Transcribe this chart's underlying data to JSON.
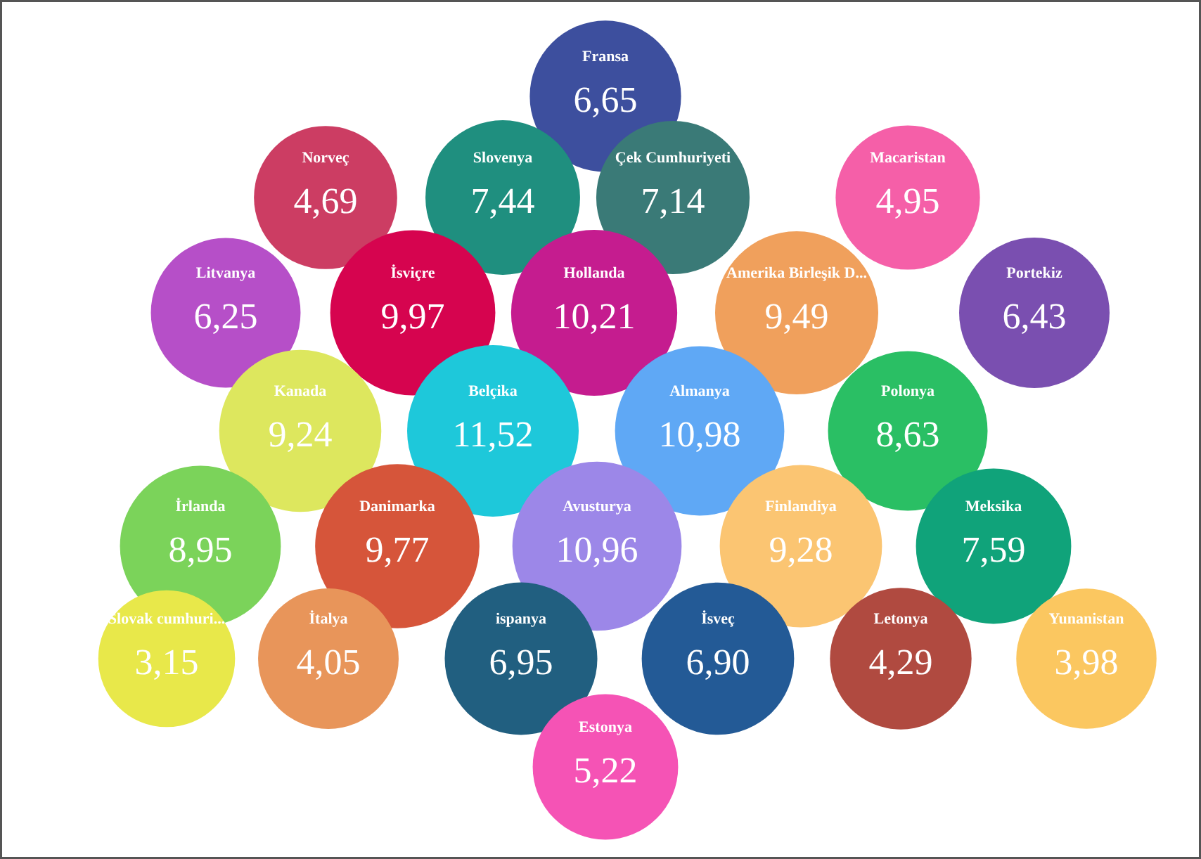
{
  "chart_data": {
    "type": "other",
    "categories": [
      "Fransa",
      "Norveç",
      "Slovenya",
      "Çek Cumhuriyeti",
      "Macaristan",
      "Litvanya",
      "İsviçre",
      "Hollanda",
      "Amerika Birleşik D...",
      "Portekiz",
      "Kanada",
      "Belçika",
      "Almanya",
      "Polonya",
      "İrlanda",
      "Danimarka",
      "Avusturya",
      "Finlandiya",
      "Meksika",
      "Slovak cumhuri...",
      "İtalya",
      "ispanya",
      "İsveç",
      "Letonya",
      "Yunanistan",
      "Estonya"
    ],
    "values": [
      6.65,
      4.69,
      7.44,
      7.14,
      4.95,
      6.25,
      9.97,
      10.21,
      9.49,
      6.43,
      9.24,
      11.52,
      10.98,
      8.63,
      8.95,
      9.77,
      10.96,
      9.28,
      7.59,
      3.15,
      4.05,
      6.95,
      6.9,
      4.29,
      3.98,
      5.22
    ],
    "value_labels": [
      "6,65",
      "4,69",
      "7,44",
      "7,14",
      "4,95",
      "6,25",
      "9,97",
      "10,21",
      "9,49",
      "6,43",
      "9,24",
      "11,52",
      "10,98",
      "8,63",
      "8,95",
      "9,77",
      "10,96",
      "9,28",
      "7,59",
      "3,15",
      "4,05",
      "6,95",
      "6,90",
      "4,29",
      "3,98",
      "5,22"
    ],
    "colors": [
      "#3d4f9e",
      "#cc3d63",
      "#1f8f7f",
      "#3a7a77",
      "#f55fa8",
      "#b64fc8",
      "#d6044f",
      "#c51c8f",
      "#f0a05c",
      "#7a4fb0",
      "#dde75e",
      "#1ec8da",
      "#5fa8f5",
      "#2abf64",
      "#7bd35a",
      "#d6553a",
      "#9c87e8",
      "#fbc572",
      "#10a37a",
      "#e8e84a",
      "#e8955a",
      "#215f80",
      "#235a96",
      "#b04a40",
      "#fbc760",
      "#f553b5"
    ]
  }
}
